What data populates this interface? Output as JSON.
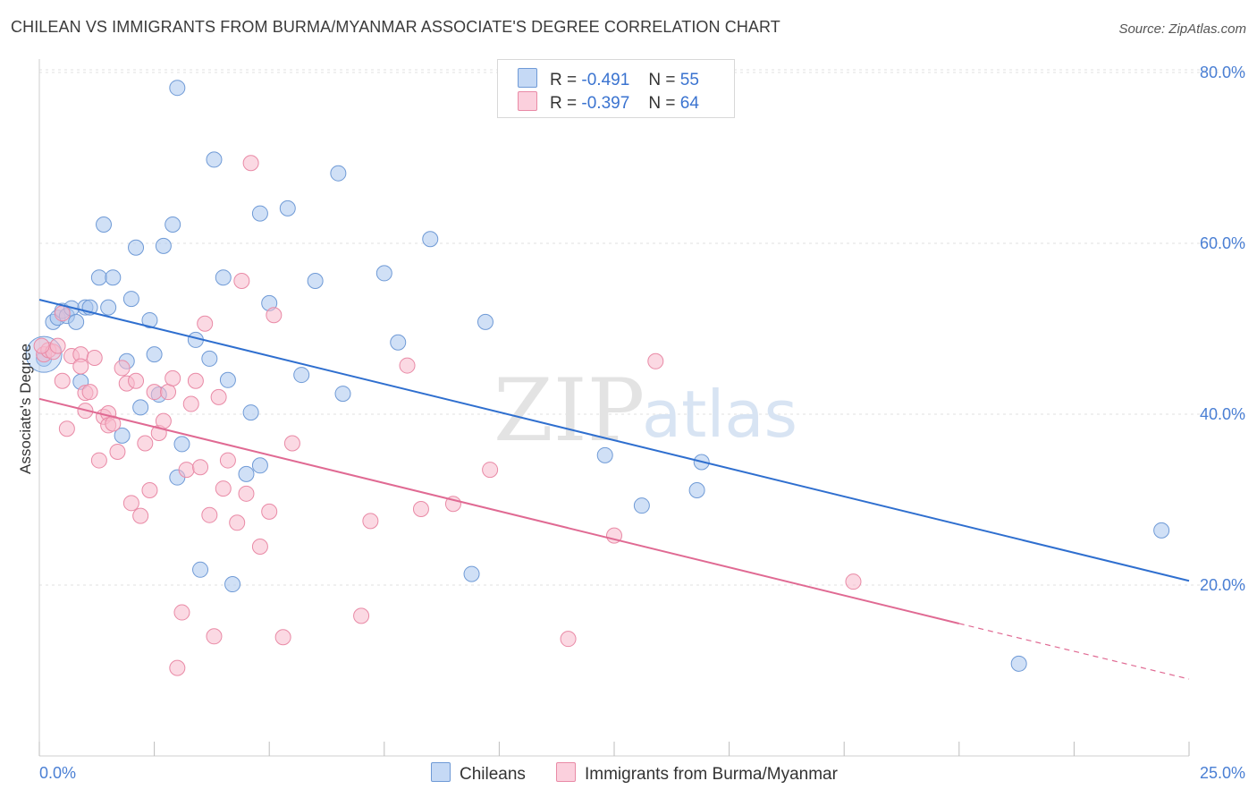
{
  "title": "CHILEAN VS IMMIGRANTS FROM BURMA/MYANMAR ASSOCIATE'S DEGREE CORRELATION CHART",
  "source": "Source: ZipAtlas.com",
  "watermark": {
    "zip": "ZIP",
    "atlas": "atlas"
  },
  "legend": {
    "r_label": "R =",
    "n_label": "N =",
    "rows": [
      {
        "r": "-0.491",
        "n": "55",
        "color": "#a9c7ef",
        "border": "#6f9ad6"
      },
      {
        "r": "-0.397",
        "n": "64",
        "color": "#f7b9cc",
        "border": "#e98aa6"
      }
    ]
  },
  "bottom_legend": [
    "Chileans",
    "Immigrants from Burma/Myanmar"
  ],
  "colors": {
    "blue_fill": "#a9c7ef",
    "blue_stroke": "#6f9ad6",
    "blue_line": "#2f6fcf",
    "pink_fill": "#f7b9cc",
    "pink_stroke": "#e98aa6",
    "pink_line": "#e06a93",
    "grid": "#e2e2e2",
    "axis_text": "#4a7fd4"
  },
  "chart_data": {
    "type": "scatter",
    "title": "CHILEAN VS IMMIGRANTS FROM BURMA/MYANMAR ASSOCIATE'S DEGREE CORRELATION CHART",
    "xlabel": "",
    "ylabel": "Associate's Degree",
    "xlim": [
      0,
      25
    ],
    "ylim": [
      0,
      82
    ],
    "x_tick_labels": [
      "0.0%",
      "25.0%"
    ],
    "y_ticks": [
      20,
      40,
      60,
      80
    ],
    "y_tick_labels": [
      "20.0%",
      "40.0%",
      "60.0%",
      "80.0%"
    ],
    "grid": true,
    "legend_position": "top-center",
    "series": [
      {
        "name": "Chileans",
        "r": -0.491,
        "n": 55,
        "trend": {
          "x0": 0,
          "y0": 53.4,
          "x1": 25,
          "y1": 20.5
        },
        "points": [
          [
            0.1,
            46.5
          ],
          [
            0.3,
            50.8
          ],
          [
            0.4,
            51.3
          ],
          [
            0.5,
            52.1
          ],
          [
            0.6,
            51.5
          ],
          [
            0.7,
            52.4
          ],
          [
            0.8,
            50.8
          ],
          [
            0.9,
            43.8
          ],
          [
            1.0,
            52.5
          ],
          [
            1.1,
            52.5
          ],
          [
            1.3,
            56.0
          ],
          [
            1.4,
            62.2
          ],
          [
            1.5,
            52.5
          ],
          [
            1.6,
            56.0
          ],
          [
            1.8,
            37.5
          ],
          [
            1.9,
            46.2
          ],
          [
            2.0,
            53.5
          ],
          [
            2.1,
            59.5
          ],
          [
            2.2,
            40.8
          ],
          [
            2.4,
            51.0
          ],
          [
            2.5,
            47.0
          ],
          [
            2.6,
            42.3
          ],
          [
            2.7,
            59.7
          ],
          [
            2.9,
            62.2
          ],
          [
            3.0,
            78.2
          ],
          [
            3.0,
            32.6
          ],
          [
            3.1,
            36.5
          ],
          [
            3.4,
            48.7
          ],
          [
            3.5,
            21.8
          ],
          [
            3.7,
            46.5
          ],
          [
            3.8,
            69.8
          ],
          [
            4.0,
            56.0
          ],
          [
            4.1,
            44.0
          ],
          [
            4.2,
            20.1
          ],
          [
            4.5,
            33.0
          ],
          [
            4.6,
            40.2
          ],
          [
            4.8,
            63.5
          ],
          [
            4.8,
            34.0
          ],
          [
            5.0,
            53.0
          ],
          [
            5.4,
            64.1
          ],
          [
            5.7,
            44.6
          ],
          [
            6.0,
            55.6
          ],
          [
            6.5,
            68.2
          ],
          [
            6.6,
            42.4
          ],
          [
            7.5,
            56.5
          ],
          [
            7.8,
            48.4
          ],
          [
            8.5,
            60.5
          ],
          [
            9.4,
            21.3
          ],
          [
            9.7,
            50.8
          ],
          [
            12.3,
            35.2
          ],
          [
            13.1,
            29.3
          ],
          [
            14.3,
            31.1
          ],
          [
            14.4,
            34.4
          ],
          [
            21.3,
            10.8
          ],
          [
            24.4,
            26.4
          ]
        ]
      },
      {
        "name": "Immigrants from Burma/Myanmar",
        "r": -0.397,
        "n": 64,
        "trend": {
          "x0": 0,
          "y0": 41.8,
          "x1": 20,
          "y1": 15.5,
          "dash_to": {
            "x": 25,
            "y": 9.0
          }
        },
        "points": [
          [
            0.1,
            47.0
          ],
          [
            0.2,
            47.5
          ],
          [
            0.3,
            47.3
          ],
          [
            0.4,
            48.0
          ],
          [
            0.5,
            51.8
          ],
          [
            0.5,
            43.9
          ],
          [
            0.6,
            38.3
          ],
          [
            0.7,
            46.8
          ],
          [
            0.9,
            47.0
          ],
          [
            0.9,
            45.6
          ],
          [
            1.0,
            40.4
          ],
          [
            1.0,
            42.5
          ],
          [
            1.1,
            42.6
          ],
          [
            1.2,
            46.6
          ],
          [
            1.3,
            34.6
          ],
          [
            1.4,
            39.7
          ],
          [
            1.5,
            40.1
          ],
          [
            1.5,
            38.7
          ],
          [
            1.6,
            38.9
          ],
          [
            1.7,
            35.6
          ],
          [
            1.8,
            45.4
          ],
          [
            1.9,
            43.6
          ],
          [
            2.0,
            29.6
          ],
          [
            2.1,
            43.9
          ],
          [
            2.2,
            28.1
          ],
          [
            2.3,
            36.6
          ],
          [
            2.4,
            31.1
          ],
          [
            2.5,
            42.6
          ],
          [
            2.6,
            37.8
          ],
          [
            2.7,
            39.2
          ],
          [
            2.8,
            42.6
          ],
          [
            2.9,
            44.2
          ],
          [
            3.0,
            10.3
          ],
          [
            3.1,
            16.8
          ],
          [
            3.2,
            33.5
          ],
          [
            3.3,
            41.2
          ],
          [
            3.4,
            43.9
          ],
          [
            3.5,
            33.8
          ],
          [
            3.6,
            50.6
          ],
          [
            3.7,
            28.2
          ],
          [
            3.8,
            14.0
          ],
          [
            3.9,
            42.0
          ],
          [
            4.0,
            31.3
          ],
          [
            4.1,
            34.6
          ],
          [
            4.3,
            27.3
          ],
          [
            4.4,
            55.6
          ],
          [
            4.5,
            30.7
          ],
          [
            4.6,
            69.4
          ],
          [
            4.8,
            24.5
          ],
          [
            5.0,
            28.6
          ],
          [
            5.1,
            51.6
          ],
          [
            5.3,
            13.9
          ],
          [
            5.5,
            36.6
          ],
          [
            7.0,
            16.4
          ],
          [
            7.2,
            27.5
          ],
          [
            8.0,
            45.7
          ],
          [
            8.3,
            28.9
          ],
          [
            9.0,
            29.5
          ],
          [
            9.8,
            33.5
          ],
          [
            11.5,
            13.7
          ],
          [
            12.5,
            25.8
          ],
          [
            13.4,
            46.2
          ],
          [
            17.7,
            20.4
          ],
          [
            0.05,
            48.0
          ]
        ]
      }
    ]
  }
}
